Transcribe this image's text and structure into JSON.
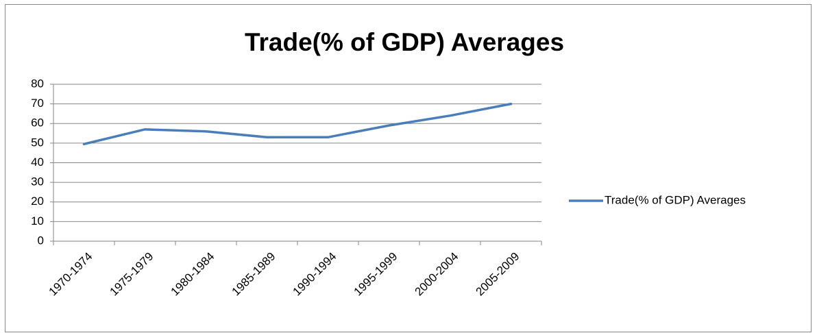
{
  "chart_data": {
    "type": "line",
    "title": "Trade(% of GDP) Averages",
    "categories": [
      "1970-1974",
      "1975-1979",
      "1980-1984",
      "1985-1989",
      "1990-1994",
      "1995-1999",
      "2000-2004",
      "2005-2009"
    ],
    "series": [
      {
        "name": "Trade(% of GDP) Averages",
        "color": "#4a7ebb",
        "values": [
          49.5,
          57,
          56,
          53,
          53,
          59,
          64,
          70
        ]
      }
    ],
    "ylim": [
      0,
      80
    ],
    "yticks": [
      0,
      10,
      20,
      30,
      40,
      50,
      60,
      70,
      80
    ],
    "grid": true,
    "legend": "right"
  }
}
